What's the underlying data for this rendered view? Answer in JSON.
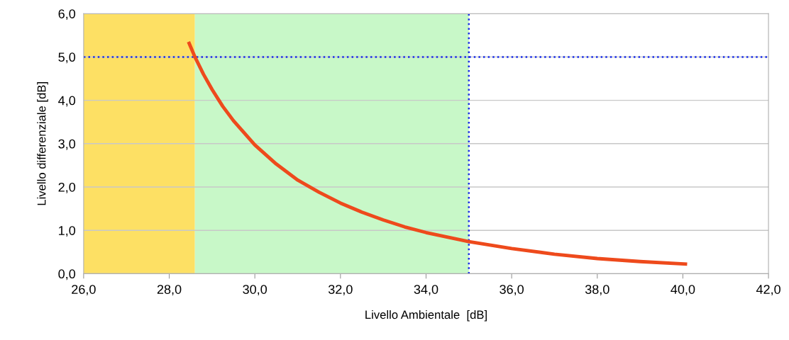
{
  "chart_data": {
    "type": "line",
    "xlabel": "Livello Ambientale  [dB]",
    "ylabel": "Livello differenziale [dB]",
    "xlim": [
      26,
      42
    ],
    "ylim": [
      0,
      6
    ],
    "xticks": [
      {
        "value": 26,
        "label": "26,0"
      },
      {
        "value": 28,
        "label": "28,0"
      },
      {
        "value": 30,
        "label": "30,0"
      },
      {
        "value": 32,
        "label": "32,0"
      },
      {
        "value": 34,
        "label": "34,0"
      },
      {
        "value": 36,
        "label": "36,0"
      },
      {
        "value": 38,
        "label": "38,0"
      },
      {
        "value": 40,
        "label": "40,0"
      },
      {
        "value": 42,
        "label": "42,0"
      }
    ],
    "yticks": [
      {
        "value": 0,
        "label": "0,0"
      },
      {
        "value": 1,
        "label": "1,0"
      },
      {
        "value": 2,
        "label": "2,0"
      },
      {
        "value": 3,
        "label": "3,0"
      },
      {
        "value": 4,
        "label": "4,0"
      },
      {
        "value": 5,
        "label": "5,0"
      },
      {
        "value": 6,
        "label": "6,0"
      }
    ],
    "grid": "y",
    "marker": "none",
    "line_style": "solid",
    "series": [
      {
        "color": "#ee4a1c",
        "x": [
          28.45,
          28.6,
          28.8,
          29.0,
          29.25,
          29.5,
          30,
          30.5,
          31,
          31.5,
          32,
          32.5,
          33,
          33.5,
          34,
          35,
          36,
          37,
          38,
          39,
          40.1
        ],
        "values": [
          5.35,
          5.0,
          4.6,
          4.25,
          3.86,
          3.53,
          2.97,
          2.53,
          2.16,
          1.88,
          1.63,
          1.42,
          1.24,
          1.08,
          0.95,
          0.74,
          0.58,
          0.45,
          0.35,
          0.28,
          0.22
        ]
      }
    ],
    "bands": [
      {
        "axis": "x",
        "from": 26,
        "to": 28.6,
        "color": "#fde064"
      },
      {
        "axis": "x",
        "from": 28.6,
        "to": 35,
        "color": "#c8f8c8"
      }
    ],
    "ref_lines": [
      {
        "axis": "y",
        "value": 5,
        "color": "#1a2ee8",
        "line_style": "dotted"
      },
      {
        "axis": "x",
        "value": 35,
        "color": "#1a2ee8",
        "line_style": "dotted"
      }
    ]
  }
}
